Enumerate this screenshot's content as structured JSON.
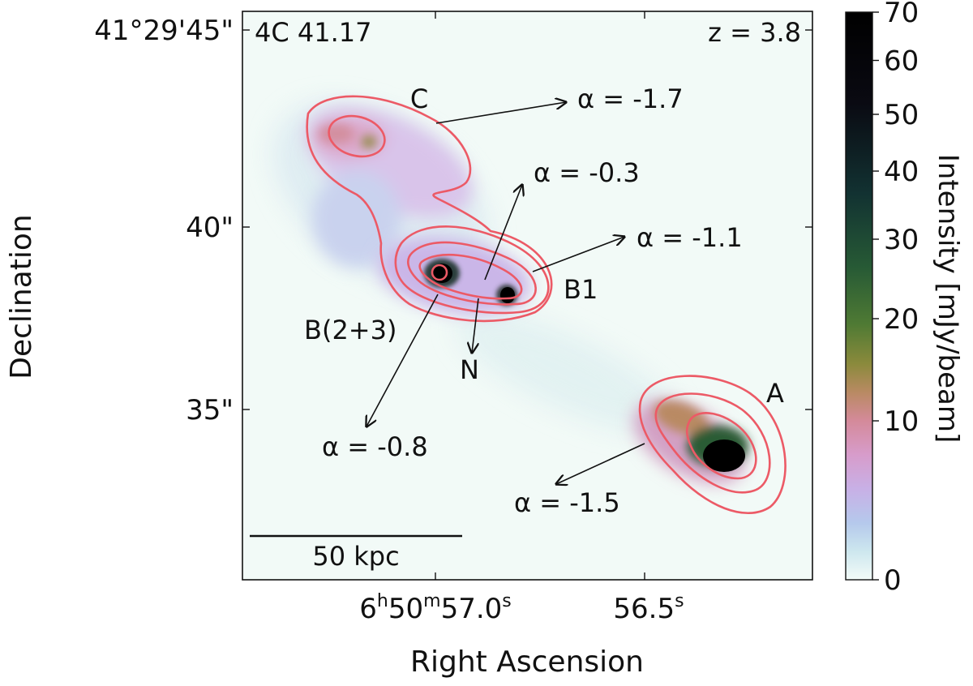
{
  "chart_data": {
    "type": "heatmap",
    "title": "",
    "source_name": "4C 41.17",
    "redshift_label": "z  = 3.8",
    "xlabel": "Right Ascension",
    "ylabel": "Declination",
    "xticks": [
      {
        "value": 57.0,
        "h": "6",
        "m": "50",
        "s_value": "57.0",
        "h_unit": "h",
        "m_unit": "m",
        "s_unit": "s"
      },
      {
        "value": 56.5,
        "s_value": "56.5",
        "s_unit": "s"
      }
    ],
    "yticks": [
      {
        "value": 45,
        "label": "41°29'45\""
      },
      {
        "value": 40,
        "label": "40\""
      },
      {
        "value": 35,
        "label": "35\""
      }
    ],
    "xlim_ra_seconds": [
      57.45,
      56.1
    ],
    "ylim_dec_arcsec": [
      30.3,
      46.0
    ],
    "colorbar": {
      "label": "Intensity [mJy/beam]",
      "range": [
        0,
        70
      ],
      "ticks": [
        "0",
        "10",
        "20",
        "30",
        "40",
        "50",
        "60",
        "70"
      ],
      "tick_values": [
        0,
        10,
        20,
        30,
        40,
        50,
        60,
        70
      ],
      "colormap": [
        "#f3fbf8",
        "#cde7ee",
        "#b5c9ec",
        "#c8b0e6",
        "#d79ccb",
        "#d48a9a",
        "#b98a63",
        "#8b8a3c",
        "#4f7a34",
        "#275a35",
        "#123232",
        "#0a0a12",
        "#000000"
      ],
      "scale": "nonlinear"
    },
    "contours": {
      "color": "#ec5a66"
    },
    "components": [
      {
        "name": "C",
        "spectral_index": "α = -1.7",
        "ra": 57.14,
        "dec": 42.4
      },
      {
        "name": "B1",
        "spectral_index": "α = -1.1",
        "ra": 56.83,
        "dec": 38.0
      },
      {
        "name": "B(2+3)",
        "spectral_index": "α = -0.8",
        "ra": 56.99,
        "dec": 38.6
      },
      {
        "name": "N",
        "spectral_index": "α = -0.3",
        "ra": 56.9,
        "dec": 38.2
      },
      {
        "name": "A",
        "spectral_index": "α = -1.5",
        "ra": 56.3,
        "dec": 33.7
      }
    ],
    "scale_bar_label": "50 kpc"
  }
}
